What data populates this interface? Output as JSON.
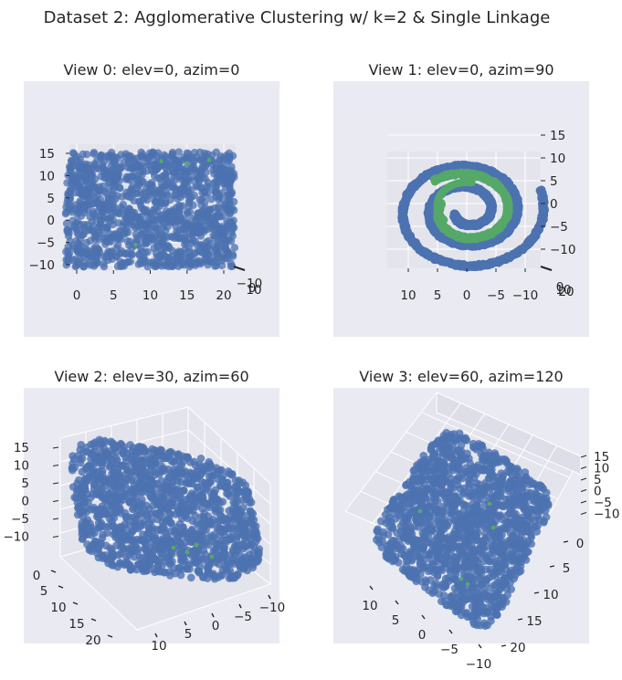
{
  "figure": {
    "suptitle": "Dataset 2: Agglomerative Clustering w/ k=2 & Single Linkage",
    "colors": {
      "panel_bg": "#eaeaf2",
      "cluster_blue": "#4c72b0",
      "cluster_green": "#55a868",
      "pane": "#e4e4ed",
      "text": "#262626"
    }
  },
  "chart_data": [
    {
      "type": "scatter",
      "title": "View 0: elev=0, azim=0",
      "elev": 0,
      "azim": 0,
      "xlim": [
        -2,
        23
      ],
      "ylim": [
        -12,
        16
      ],
      "zlim": [
        -12,
        16
      ],
      "xticks": [
        "0",
        "5",
        "10",
        "15",
        "20"
      ],
      "zticks": [
        "15",
        "10",
        "5",
        "0",
        "−5",
        "−10"
      ],
      "overlap_ticks": [
        "−10",
        "0",
        "10"
      ],
      "series": [
        {
          "cluster": 0,
          "color": "#4c72b0",
          "shape": "outer swiss-roll spiral (majority of points)"
        },
        {
          "cluster": 1,
          "color": "#55a868",
          "shape": "inner spiral segment"
        }
      ]
    },
    {
      "type": "scatter",
      "title": "View 1: elev=0, azim=90",
      "elev": 0,
      "azim": 90,
      "xlim": [
        14,
        -11
      ],
      "zlim": [
        -12,
        17
      ],
      "xticks": [
        "10",
        "5",
        "0",
        "−5",
        "−10"
      ],
      "zticks": [
        "15",
        "10",
        "5",
        "0",
        "−5",
        "−10"
      ],
      "overlap_ticks": [
        "0",
        "10",
        "20"
      ],
      "spiral": {
        "outer": {
          "r_from": 2.2,
          "r_to": 13.4,
          "turns_deg": 900,
          "color": "#4c72b0"
        },
        "inner": {
          "r_from": 4.6,
          "r_to": 8.6,
          "color": "#55a868"
        }
      }
    },
    {
      "type": "scatter",
      "title": "View 2: elev=30, azim=60",
      "elev": 30,
      "azim": 60,
      "xticks": [
        "20",
        "15",
        "10",
        "5",
        "0"
      ],
      "yticks": [
        "10",
        "5",
        "0",
        "−5",
        "−10"
      ],
      "zticks": [
        "15",
        "10",
        "5",
        "0",
        "−5",
        "−10"
      ]
    },
    {
      "type": "scatter",
      "title": "View 3: elev=60, azim=120",
      "elev": 60,
      "azim": 120,
      "xticks": [
        "10",
        "5",
        "0",
        "−5",
        "−10"
      ],
      "yticks": [
        "20",
        "15",
        "10",
        "5",
        "0"
      ],
      "zticks": [
        "15",
        "10",
        "5",
        "0",
        "−5",
        "−10"
      ]
    }
  ]
}
